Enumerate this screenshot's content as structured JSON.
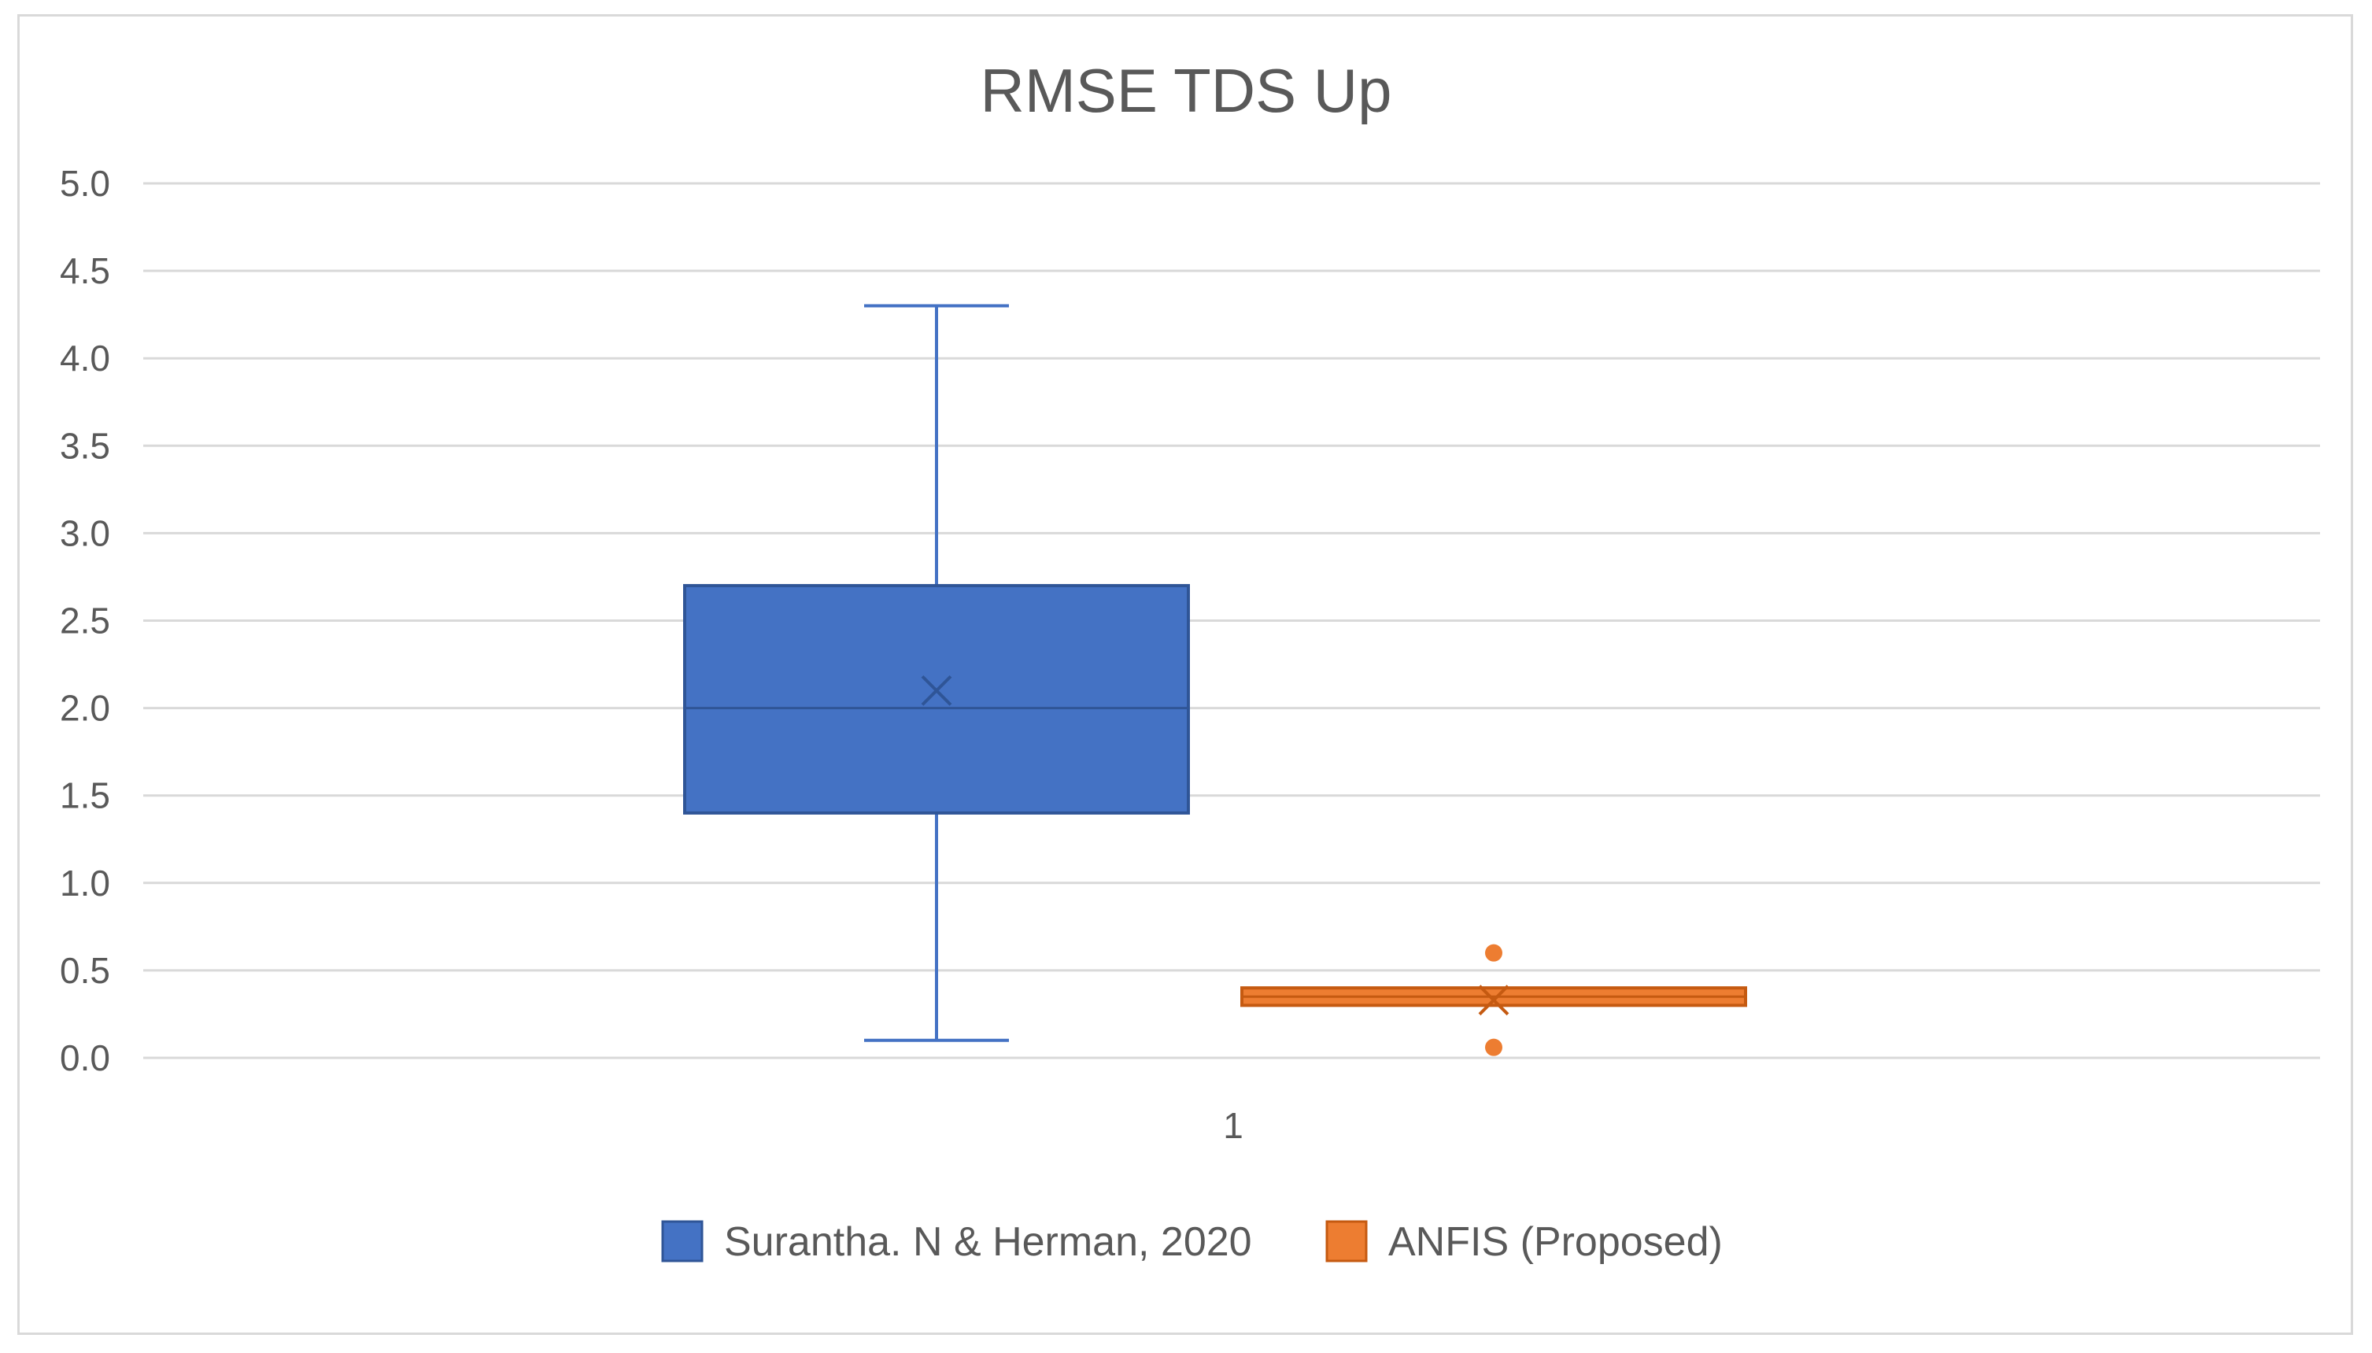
{
  "chart_data": {
    "type": "boxplot",
    "title": "RMSE TDS Up",
    "xlabel": "",
    "ylabel": "",
    "ylim": [
      0,
      5
    ],
    "yticks": [
      "0.0",
      "0.5",
      "1.0",
      "1.5",
      "2.0",
      "2.5",
      "3.0",
      "3.5",
      "4.0",
      "4.5",
      "5.0"
    ],
    "categories": [
      "1"
    ],
    "grid": true,
    "legend_position": "bottom",
    "series": [
      {
        "name": "Surantha. N & Herman, 2020",
        "color": "#4472C4",
        "min": 0.1,
        "q1": 1.4,
        "median": 2.0,
        "q3": 2.7,
        "max": 4.3,
        "mean": 2.1,
        "outliers": []
      },
      {
        "name": "ANFIS (Proposed)",
        "color": "#ED7D31",
        "min": 0.3,
        "q1": 0.3,
        "median": 0.35,
        "q3": 0.4,
        "max": 0.4,
        "mean": 0.33,
        "outliers": [
          0.6,
          0.06
        ]
      }
    ]
  }
}
